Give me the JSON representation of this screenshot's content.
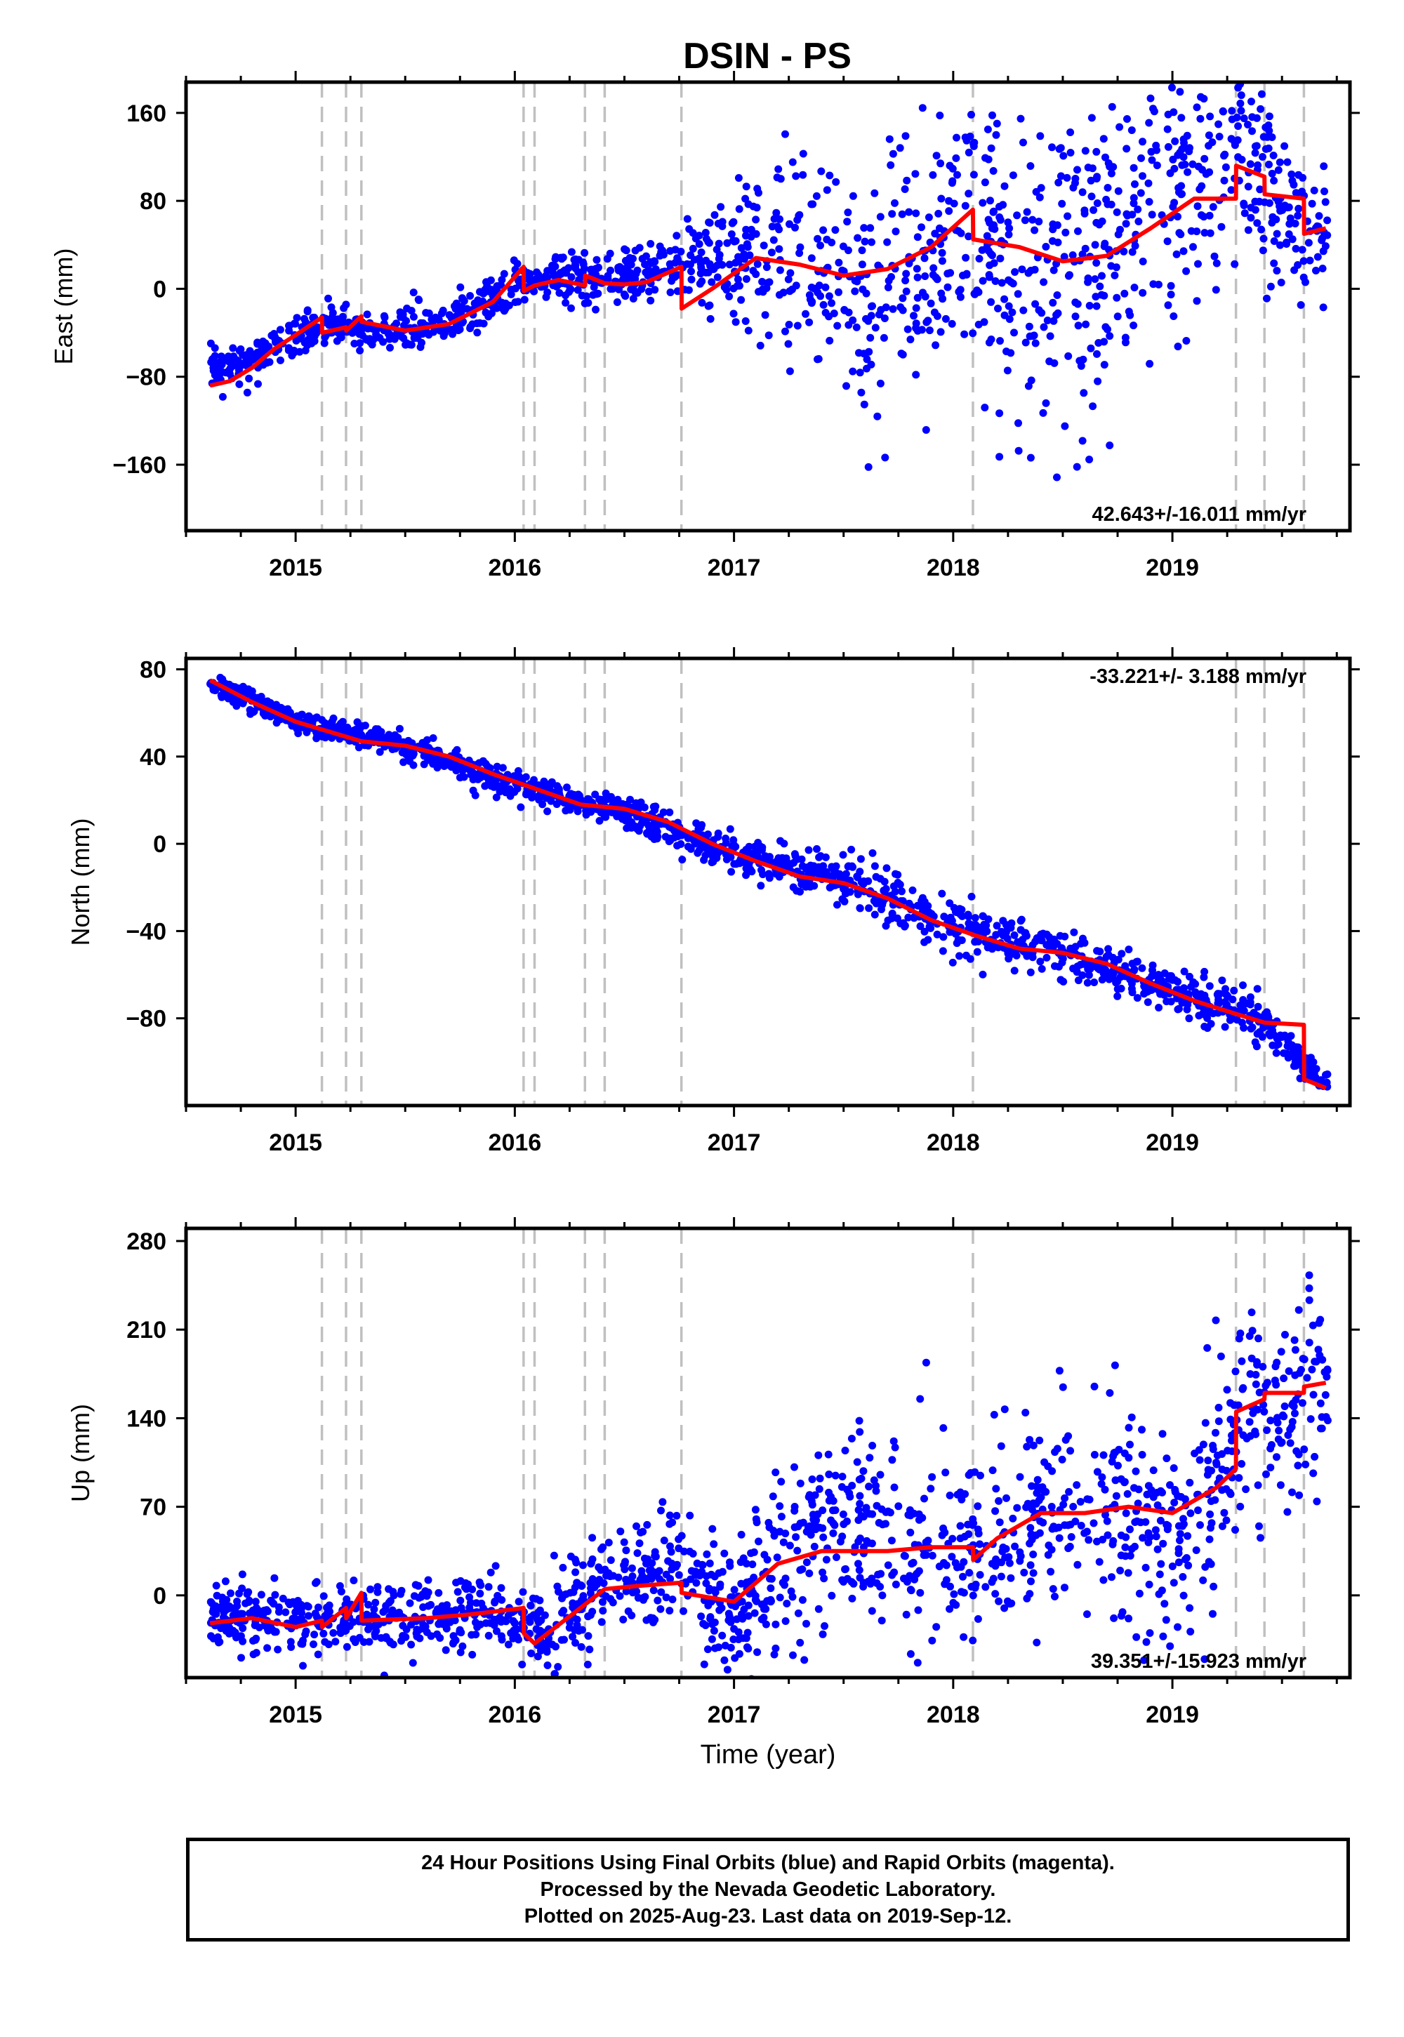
{
  "title": "DSIN - PS",
  "footer": {
    "line1": "24 Hour Positions Using Final Orbits (blue) and Rapid Orbits (magenta).",
    "line2": "Processed by the Nevada Geodetic Laboratory.",
    "line3": "Plotted on 2025-Aug-23. Last data on 2019-Sep-12."
  },
  "colors": {
    "points": "#0000ff",
    "model": "#ff0000",
    "steps": "#c0c0c0"
  },
  "chart_data": [
    {
      "type": "scatter",
      "ylabel": "East (mm)",
      "xlabel": "",
      "rate": "42.643+/-16.011 mm/yr",
      "xlim": [
        2014.5,
        2019.81
      ],
      "ylim": [
        -220,
        188
      ],
      "yticks": [
        -160,
        -80,
        0,
        80,
        160
      ],
      "xticks": [
        2015,
        2016,
        2017,
        2018,
        2019
      ],
      "grid": false,
      "step_epochs": [
        2015.12,
        2015.23,
        2015.3,
        2016.04,
        2016.09,
        2016.32,
        2016.41,
        2016.76,
        2018.09,
        2019.29,
        2019.42,
        2019.6
      ],
      "model": {
        "x": [
          2014.61,
          2014.7,
          2014.8,
          2014.9,
          2015.0,
          2015.12,
          2015.121,
          2015.23,
          2015.231,
          2015.3,
          2015.301,
          2015.5,
          2015.7,
          2015.9,
          2016.04,
          2016.041,
          2016.09,
          2016.2,
          2016.32,
          2016.321,
          2016.41,
          2016.5,
          2016.6,
          2016.76,
          2016.761,
          2016.9,
          2017.1,
          2017.3,
          2017.5,
          2017.7,
          2017.9,
          2018.09,
          2018.091,
          2018.3,
          2018.5,
          2018.7,
          2018.9,
          2019.1,
          2019.29,
          2019.291,
          2019.42,
          2019.421,
          2019.6,
          2019.601,
          2019.7
        ],
        "y": [
          -88,
          -84,
          -72,
          -55,
          -42,
          -26,
          -40,
          -35,
          -38,
          -25,
          -30,
          -38,
          -32,
          -12,
          20,
          -2,
          3,
          8,
          3,
          12,
          5,
          4,
          6,
          20,
          -18,
          0,
          28,
          22,
          12,
          18,
          38,
          72,
          45,
          38,
          25,
          30,
          55,
          82,
          82,
          112,
          102,
          86,
          82,
          50,
          55
        ]
      },
      "anchors": [
        [
          2014.6,
          -72
        ],
        [
          2014.8,
          -66
        ],
        [
          2015.0,
          -42
        ],
        [
          2015.2,
          -35
        ],
        [
          2015.4,
          -40
        ],
        [
          2015.6,
          -32
        ],
        [
          2015.8,
          -24
        ],
        [
          2016.0,
          2
        ],
        [
          2016.2,
          10
        ],
        [
          2016.5,
          8
        ],
        [
          2016.75,
          18
        ],
        [
          2017.0,
          30
        ],
        [
          2017.2,
          40
        ],
        [
          2017.4,
          20
        ],
        [
          2017.6,
          -20
        ],
        [
          2017.8,
          20
        ],
        [
          2018.0,
          60
        ],
        [
          2018.1,
          70
        ],
        [
          2018.2,
          30
        ],
        [
          2018.4,
          -10
        ],
        [
          2018.6,
          20
        ],
        [
          2018.8,
          60
        ],
        [
          2019.0,
          100
        ],
        [
          2019.2,
          110
        ],
        [
          2019.3,
          120
        ],
        [
          2019.5,
          80
        ],
        [
          2019.6,
          60
        ],
        [
          2019.7,
          45
        ]
      ],
      "spread": [
        [
          2014.6,
          8
        ],
        [
          2016.6,
          12
        ],
        [
          2016.9,
          25
        ],
        [
          2017.3,
          45
        ],
        [
          2018.1,
          60
        ],
        [
          2018.6,
          75
        ],
        [
          2019.0,
          60
        ],
        [
          2019.3,
          45
        ],
        [
          2019.7,
          30
        ]
      ],
      "count": 1550
    },
    {
      "type": "scatter",
      "ylabel": "North (mm)",
      "xlabel": "",
      "rate": "-33.221+/- 3.188 mm/yr",
      "xlim": [
        2014.5,
        2019.81
      ],
      "ylim": [
        -120,
        85
      ],
      "yticks": [
        -80,
        -40,
        0,
        40,
        80
      ],
      "xticks": [
        2015,
        2016,
        2017,
        2018,
        2019
      ],
      "grid": false,
      "step_epochs": [
        2015.12,
        2015.23,
        2015.3,
        2016.04,
        2016.09,
        2016.32,
        2016.41,
        2016.76,
        2018.09,
        2019.29,
        2019.42,
        2019.6
      ],
      "model": {
        "x": [
          2014.61,
          2014.8,
          2015.0,
          2015.2,
          2015.3,
          2015.5,
          2015.7,
          2015.9,
          2016.1,
          2016.3,
          2016.5,
          2016.7,
          2016.9,
          2017.1,
          2017.3,
          2017.5,
          2017.7,
          2017.9,
          2018.1,
          2018.3,
          2018.5,
          2018.7,
          2018.9,
          2019.1,
          2019.29,
          2019.42,
          2019.6,
          2019.601,
          2019.7
        ],
        "y": [
          75,
          65,
          56,
          50,
          47,
          45,
          40,
          32,
          25,
          18,
          16,
          10,
          0,
          -8,
          -15,
          -18,
          -25,
          -35,
          -42,
          -48,
          -50,
          -55,
          -64,
          -72,
          -78,
          -82,
          -83,
          -108,
          -112
        ]
      },
      "anchors": [
        [
          2014.6,
          75
        ],
        [
          2015.0,
          56
        ],
        [
          2015.5,
          45
        ],
        [
          2016.0,
          26
        ],
        [
          2016.5,
          15
        ],
        [
          2017.0,
          -5
        ],
        [
          2017.5,
          -17
        ],
        [
          2018.0,
          -38
        ],
        [
          2018.5,
          -50
        ],
        [
          2019.0,
          -68
        ],
        [
          2019.4,
          -80
        ],
        [
          2019.7,
          -112
        ]
      ],
      "spread": [
        [
          2014.6,
          2.5
        ],
        [
          2016.5,
          3.5
        ],
        [
          2017.5,
          5
        ],
        [
          2018.5,
          6
        ],
        [
          2019.4,
          5
        ],
        [
          2019.7,
          3
        ]
      ],
      "count": 1550
    },
    {
      "type": "scatter",
      "ylabel": "Up (mm)",
      "xlabel": "Time (year)",
      "rate": "39.351+/-15.923 mm/yr",
      "xlim": [
        2014.5,
        2019.81
      ],
      "ylim": [
        -65,
        290
      ],
      "yticks": [
        0,
        70,
        140,
        210,
        280
      ],
      "xticks": [
        2015,
        2016,
        2017,
        2018,
        2019
      ],
      "grid": false,
      "step_epochs": [
        2015.12,
        2015.23,
        2015.3,
        2016.04,
        2016.09,
        2016.32,
        2016.41,
        2016.76,
        2018.09,
        2019.29,
        2019.42,
        2019.6
      ],
      "model": {
        "x": [
          2014.61,
          2014.8,
          2015.0,
          2015.12,
          2015.121,
          2015.23,
          2015.231,
          2015.3,
          2015.301,
          2015.6,
          2015.8,
          2016.04,
          2016.041,
          2016.09,
          2016.3,
          2016.41,
          2016.6,
          2016.76,
          2016.761,
          2017.0,
          2017.2,
          2017.4,
          2017.7,
          2017.9,
          2018.09,
          2018.091,
          2018.2,
          2018.4,
          2018.6,
          2018.8,
          2019.0,
          2019.2,
          2019.29,
          2019.291,
          2019.42,
          2019.421,
          2019.6,
          2019.601,
          2019.7
        ],
        "y": [
          -22,
          -18,
          -25,
          -20,
          -25,
          -10,
          -18,
          2,
          -20,
          -18,
          -15,
          -10,
          -30,
          -38,
          -10,
          5,
          8,
          10,
          2,
          -5,
          25,
          35,
          35,
          38,
          38,
          28,
          45,
          65,
          65,
          70,
          65,
          85,
          100,
          145,
          155,
          160,
          160,
          165,
          168
        ]
      },
      "anchors": [
        [
          2014.6,
          -15
        ],
        [
          2015.0,
          -20
        ],
        [
          2015.5,
          -15
        ],
        [
          2016.0,
          -15
        ],
        [
          2016.15,
          -30
        ],
        [
          2016.4,
          5
        ],
        [
          2016.7,
          20
        ],
        [
          2017.0,
          -15
        ],
        [
          2017.3,
          40
        ],
        [
          2017.7,
          55
        ],
        [
          2018.0,
          30
        ],
        [
          2018.2,
          40
        ],
        [
          2018.5,
          70
        ],
        [
          2018.8,
          60
        ],
        [
          2019.0,
          40
        ],
        [
          2019.3,
          130
        ],
        [
          2019.7,
          170
        ]
      ],
      "spread": [
        [
          2014.6,
          14
        ],
        [
          2016.0,
          16
        ],
        [
          2016.8,
          22
        ],
        [
          2017.4,
          35
        ],
        [
          2018.2,
          40
        ],
        [
          2019.0,
          45
        ],
        [
          2019.5,
          40
        ]
      ],
      "count": 1550
    }
  ]
}
